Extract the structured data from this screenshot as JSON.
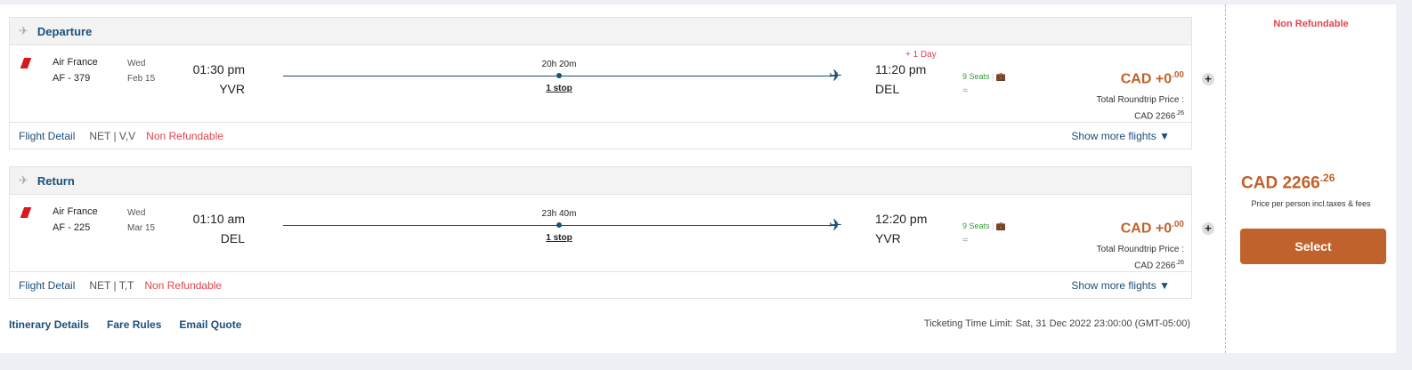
{
  "segments": [
    {
      "title": "Departure",
      "airline": "Air France",
      "flight": "AF - 379",
      "day": "Wed",
      "date": "Feb 15",
      "dep_time": "01:30 pm",
      "dep_code": "YVR",
      "duration": "20h 20m",
      "stops": "1 stop",
      "arr_time": "11:20 pm",
      "arr_code": "DEL",
      "day_offset": "+ 1 Day",
      "seats": "9 Seats",
      "price": "CAD +0",
      "price_dec": ".00",
      "total_label": "Total Roundtrip Price :",
      "total": "CAD 2266",
      "total_dec": ".26",
      "flight_detail": "Flight Detail",
      "fare": "NET | V,V",
      "refund": "Non Refundable",
      "more": "Show more flights"
    },
    {
      "title": "Return",
      "airline": "Air France",
      "flight": "AF - 225",
      "day": "Wed",
      "date": "Mar 15",
      "dep_time": "01:10 am",
      "dep_code": "DEL",
      "duration": "23h 40m",
      "stops": "1 stop",
      "arr_time": "12:20 pm",
      "arr_code": "YVR",
      "seats": "9 Seats",
      "price": "CAD +0",
      "price_dec": ".00",
      "total_label": "Total Roundtrip Price :",
      "total": "CAD 2266",
      "total_dec": ".26",
      "flight_detail": "Flight Detail",
      "fare": "NET | T,T",
      "refund": "Non Refundable",
      "more": "Show more flights"
    }
  ],
  "links": {
    "itinerary": "Itinerary Details",
    "fare_rules": "Fare Rules",
    "email": "Email Quote"
  },
  "ticketing": "Ticketing Time Limit: Sat, 31 Dec 2022 23:00:00 (GMT-05:00)",
  "side": {
    "refund": "Non Refundable",
    "price": "CAD 2266",
    "price_dec": ".26",
    "note": "Price per person incl.taxes & fees",
    "select": "Select"
  },
  "colors": {
    "accent": "#c0622b",
    "brand": "#1c4f7a",
    "refund": "#e0454f"
  }
}
